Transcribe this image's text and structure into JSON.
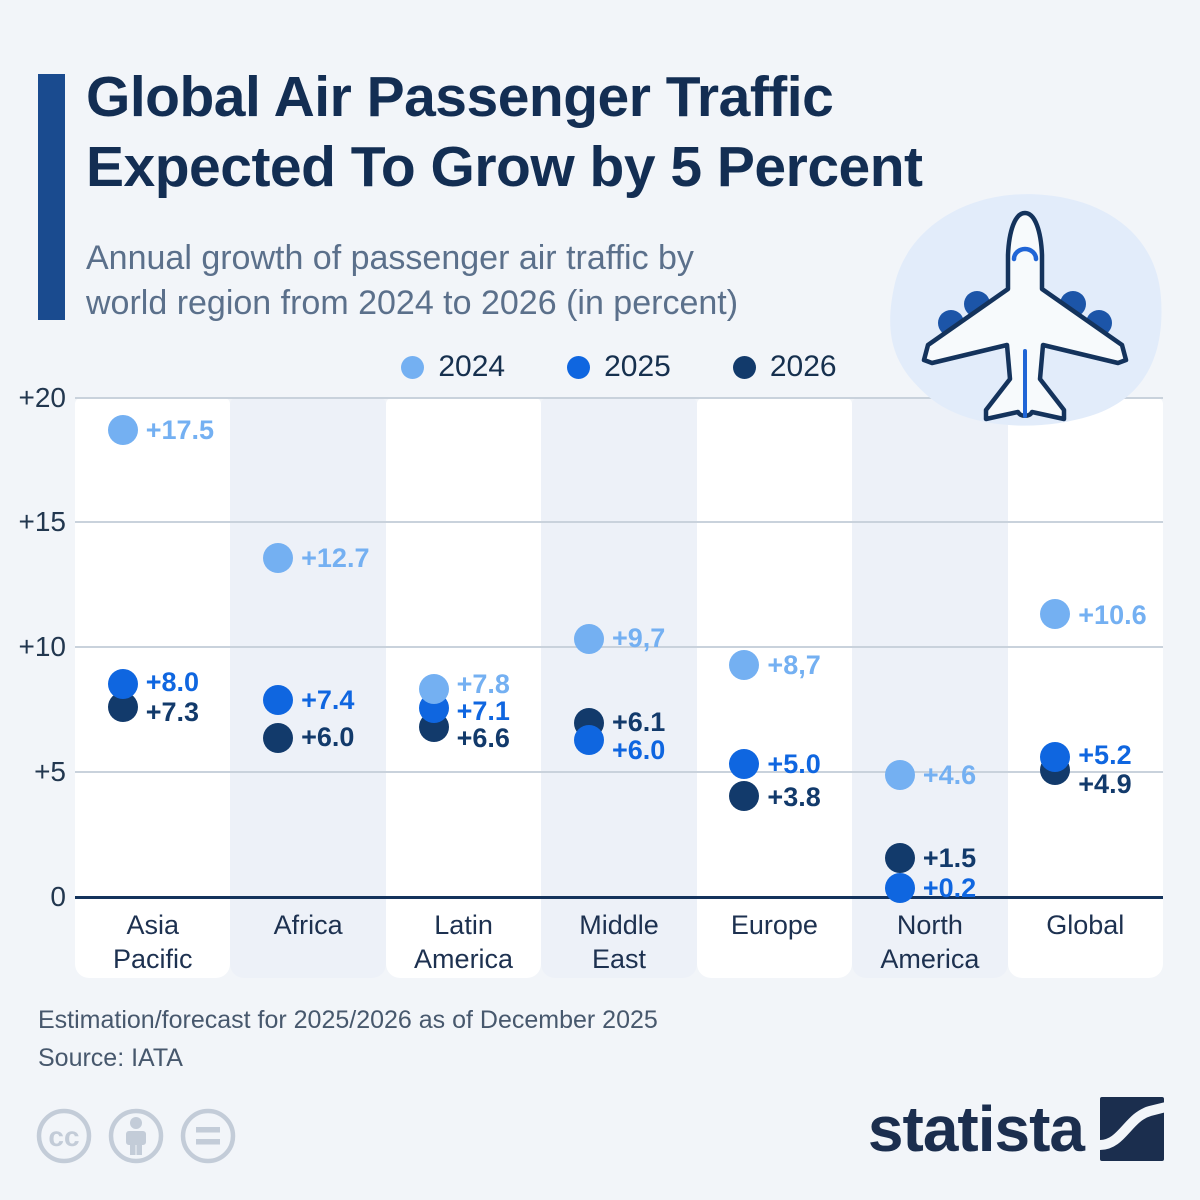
{
  "header": {
    "title_line1": "Global Air Passenger Traffic",
    "title_line2": "Expected To Grow by 5 Percent",
    "subtitle_line1": "Annual growth of passenger air traffic by",
    "subtitle_line2": "world region from 2024 to 2026 (in percent)"
  },
  "chart_data": {
    "type": "scatter",
    "title": "Global Air Passenger Traffic Expected To Grow by 5 Percent",
    "subtitle": "Annual growth of passenger air traffic by world region from 2024 to 2026 (in percent)",
    "ylabel": "percent",
    "ylim": [
      0,
      20
    ],
    "yticks": [
      "+20",
      "+15",
      "+10",
      "+5",
      "0"
    ],
    "ytick_values": [
      20,
      15,
      10,
      5,
      0
    ],
    "grid": true,
    "legend_position": "top",
    "categories": [
      "Asia\nPacific",
      "Africa",
      "Latin\nAmerica",
      "Middle\nEast",
      "Europe",
      "North\nAmerica",
      "Global"
    ],
    "series": [
      {
        "name": "2024",
        "color": "#74b0f2",
        "values": [
          17.5,
          12.7,
          7.8,
          9.7,
          8.7,
          4.6,
          10.6
        ],
        "labels": [
          "+17.5",
          "+12.7",
          "+7.8",
          "+9,7",
          "+8,7",
          "+4.6",
          "+10.6"
        ]
      },
      {
        "name": "2025",
        "color": "#0f66e0",
        "values": [
          8.0,
          7.4,
          7.1,
          6.0,
          5.0,
          0.2,
          5.2
        ],
        "labels": [
          "+8.0",
          "+7.4",
          "+7.1",
          "+6.0",
          "+5.0",
          "+0.2",
          "+5.2"
        ]
      },
      {
        "name": "2026",
        "color": "#123a6b",
        "values": [
          7.3,
          6.0,
          6.6,
          6.1,
          3.8,
          1.5,
          4.9
        ],
        "labels": [
          "+7.3",
          "+6.0",
          "+6.6",
          "+6.1",
          "+3.8",
          "+1.5",
          "+4.9"
        ]
      }
    ]
  },
  "footer": {
    "note": "Estimation/forecast for 2025/2026 as of December 2025",
    "source": "Source: IATA",
    "brand": "statista"
  },
  "colors": {
    "background": "#f2f5f9",
    "band_white": "#ffffff",
    "band_alt": "#edf1f8",
    "accent_bar": "#1a4b8f",
    "title_text": "#132e53",
    "subtitle_text": "#5b708b",
    "zero_line": "#14335c",
    "gridline": "#c9d2dc",
    "footer_text": "#47586d",
    "brand_navy": "#1b2e4e",
    "cc_gray": "#c3ccd8"
  },
  "icons": {
    "plane": "airplane-icon",
    "cc": "cc-icon",
    "cc_by": "cc-by-person-icon",
    "cc_nd": "cc-nd-equals-icon",
    "logo": "statista-logo-icon"
  }
}
